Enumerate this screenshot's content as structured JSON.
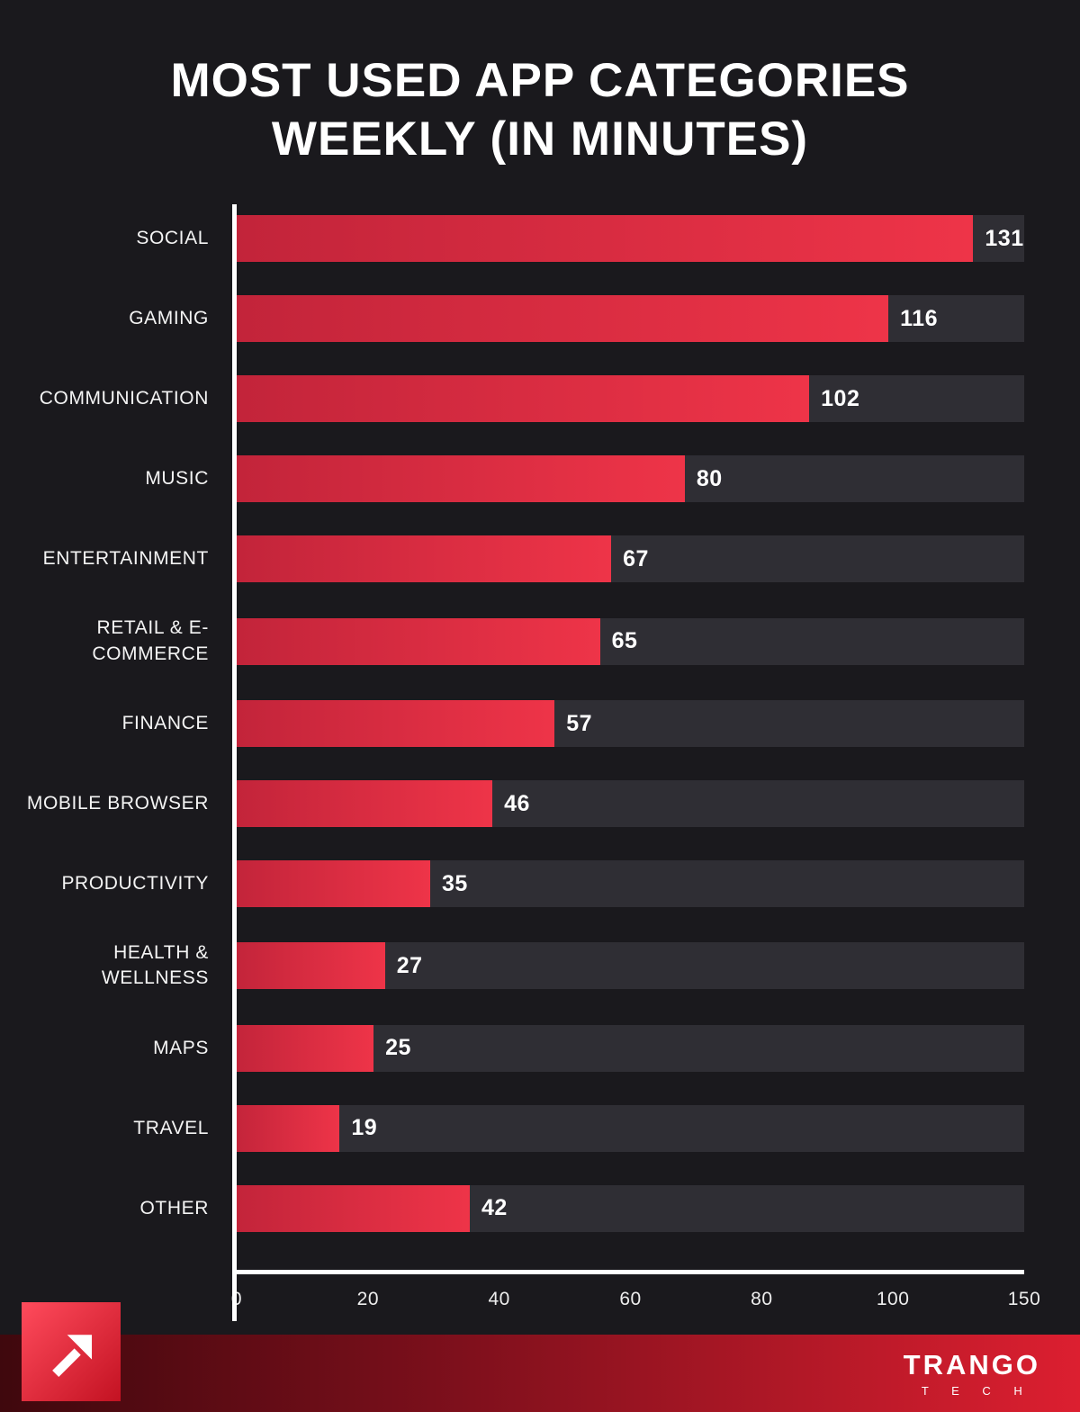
{
  "chart_data": {
    "type": "bar",
    "orientation": "horizontal",
    "title": "MOST USED APP CATEGORIES WEEKLY (IN MINUTES)",
    "categories": [
      "SOCIAL",
      "GAMING",
      "COMMUNICATION",
      "MUSIC",
      "ENTERTAINMENT",
      "RETAIL & E-COMMERCE",
      "FINANCE",
      "MOBILE BROWSER",
      "PRODUCTIVITY",
      "HEALTH & WELLNESS",
      "MAPS",
      "TRAVEL",
      "OTHER"
    ],
    "values": [
      131,
      116,
      102,
      80,
      67,
      65,
      57,
      46,
      35,
      27,
      25,
      19,
      42
    ],
    "x_ticks": [
      "0",
      "20",
      "40",
      "60",
      "80",
      "100",
      "150"
    ],
    "xlim": [
      0,
      150
    ],
    "unit": "minutes",
    "grid": false,
    "legend": false,
    "bar_color": "#e73248",
    "track_color": "#2f2e34"
  },
  "footer": {
    "brand": "TRANGO",
    "brand_sub": "T E C H"
  },
  "colors": {
    "background": "#1a191d",
    "accent_red": "#e73248",
    "axis_white": "#ffffff",
    "footer_gradient_start": "#3f080d",
    "footer_gradient_end": "#dc1f30"
  }
}
